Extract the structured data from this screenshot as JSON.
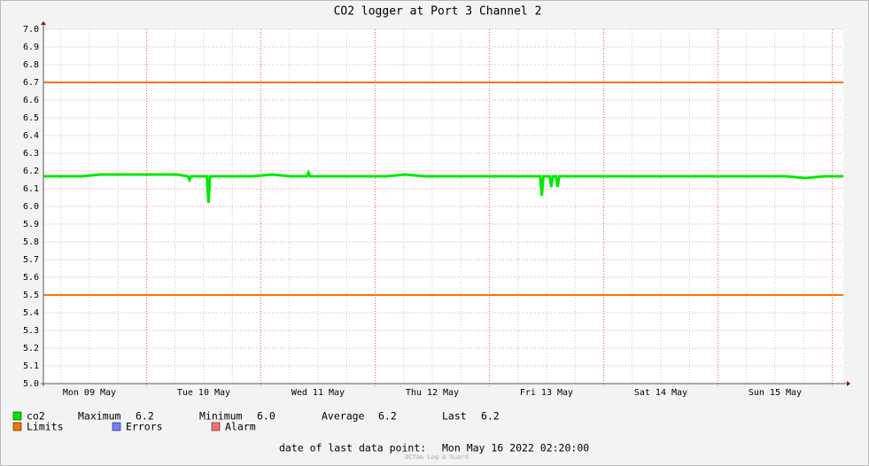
{
  "chart_data": {
    "type": "line",
    "title": "CO2 logger at Port 3 Channel 2",
    "x": [
      "2022-05-09 02:20",
      "2022-05-09 06:20",
      "2022-05-09 10:20",
      "2022-05-09 14:20",
      "2022-05-09 18:20",
      "2022-05-09 22:20",
      "2022-05-10 02:20",
      "2022-05-10 06:20",
      "2022-05-10 08:40",
      "2022-05-10 09:00",
      "2022-05-10 09:20",
      "2022-05-10 10:20",
      "2022-05-10 12:40",
      "2022-05-10 13:00",
      "2022-05-10 13:20",
      "2022-05-10 14:20",
      "2022-05-10 18:20",
      "2022-05-10 22:20",
      "2022-05-11 02:20",
      "2022-05-11 06:20",
      "2022-05-11 09:40",
      "2022-05-11 10:00",
      "2022-05-11 10:20",
      "2022-05-11 14:20",
      "2022-05-11 18:20",
      "2022-05-11 22:20",
      "2022-05-12 02:20",
      "2022-05-12 06:20",
      "2022-05-12 10:20",
      "2022-05-12 14:20",
      "2022-05-12 18:20",
      "2022-05-12 22:20",
      "2022-05-13 02:20",
      "2022-05-13 06:20",
      "2022-05-13 10:20",
      "2022-05-13 10:40",
      "2022-05-13 11:00",
      "2022-05-13 11:20",
      "2022-05-13 12:40",
      "2022-05-13 13:00",
      "2022-05-13 13:20",
      "2022-05-13 14:00",
      "2022-05-13 14:20",
      "2022-05-13 14:40",
      "2022-05-13 18:20",
      "2022-05-13 22:20",
      "2022-05-14 02:20",
      "2022-05-14 06:20",
      "2022-05-14 10:20",
      "2022-05-14 14:20",
      "2022-05-14 18:20",
      "2022-05-14 22:20",
      "2022-05-15 02:20",
      "2022-05-15 06:20",
      "2022-05-15 10:20",
      "2022-05-15 14:20",
      "2022-05-15 18:20",
      "2022-05-15 22:20",
      "2022-05-16 02:20"
    ],
    "series": [
      {
        "name": "co2",
        "color": "#00e800",
        "values": [
          6.17,
          6.17,
          6.17,
          6.18,
          6.18,
          6.18,
          6.18,
          6.18,
          6.17,
          6.15,
          6.17,
          6.17,
          6.17,
          6.02,
          6.17,
          6.17,
          6.17,
          6.17,
          6.18,
          6.17,
          6.17,
          6.19,
          6.17,
          6.17,
          6.17,
          6.17,
          6.17,
          6.18,
          6.17,
          6.17,
          6.17,
          6.17,
          6.17,
          6.17,
          6.17,
          6.17,
          6.06,
          6.17,
          6.17,
          6.11,
          6.17,
          6.17,
          6.11,
          6.17,
          6.17,
          6.17,
          6.17,
          6.17,
          6.17,
          6.17,
          6.17,
          6.17,
          6.17,
          6.17,
          6.17,
          6.17,
          6.16,
          6.17,
          6.17
        ]
      }
    ],
    "limits": {
      "name": "Limits",
      "color": "#ff7000",
      "values": [
        6.7,
        5.5
      ]
    },
    "legend_extra": [
      {
        "name": "Errors",
        "color": "#7080ff"
      },
      {
        "name": "Alarm",
        "color": "#ff7070"
      }
    ],
    "stats": [
      {
        "label": "Maximum",
        "value": 6.2
      },
      {
        "label": "Minimum",
        "value": 6.0,
        "value_label": "6.0"
      },
      {
        "label": "Average",
        "value": 6.2
      },
      {
        "label": "Last",
        "value": 6.2
      }
    ],
    "xlim": [
      "2022-05-09 02:20",
      "2022-05-16 02:20"
    ],
    "xticks": [
      {
        "value": "2022-05-09 12:00",
        "label": "Mon 09 May"
      },
      {
        "value": "2022-05-10 12:00",
        "label": "Tue 10 May"
      },
      {
        "value": "2022-05-11 12:00",
        "label": "Wed 11 May"
      },
      {
        "value": "2022-05-12 12:00",
        "label": "Thu 12 May"
      },
      {
        "value": "2022-05-13 12:00",
        "label": "Fri 13 May"
      },
      {
        "value": "2022-05-14 12:00",
        "label": "Sat 14 May"
      },
      {
        "value": "2022-05-15 12:00",
        "label": "Sun 15 May"
      }
    ],
    "xgrid": [
      "2022-05-10 00:00",
      "2022-05-11 00:00",
      "2022-05-12 00:00",
      "2022-05-13 00:00",
      "2022-05-14 00:00",
      "2022-05-15 00:00",
      "2022-05-16 00:00"
    ],
    "xminor": [
      "2022-05-09 06:00",
      "2022-05-09 12:00",
      "2022-05-09 18:00",
      "2022-05-10 06:00",
      "2022-05-10 12:00",
      "2022-05-10 18:00",
      "2022-05-11 06:00",
      "2022-05-11 12:00",
      "2022-05-11 18:00",
      "2022-05-12 06:00",
      "2022-05-12 12:00",
      "2022-05-12 18:00",
      "2022-05-13 06:00",
      "2022-05-13 12:00",
      "2022-05-13 18:00",
      "2022-05-14 06:00",
      "2022-05-14 12:00",
      "2022-05-14 18:00",
      "2022-05-15 06:00",
      "2022-05-15 12:00",
      "2022-05-15 18:00"
    ],
    "ylim": [
      5.0,
      7.0
    ],
    "yticks": [
      {
        "value": 5.0,
        "label": "5.0"
      },
      5.1,
      5.2,
      5.3,
      5.4,
      5.5,
      5.6,
      5.7,
      5.8,
      5.9,
      {
        "value": 6.0,
        "label": "6.0"
      },
      6.1,
      6.2,
      6.3,
      6.4,
      6.5,
      6.6,
      6.7,
      6.8,
      6.9,
      {
        "value": 7.0,
        "label": "7.0"
      }
    ],
    "grid": true,
    "footer": {
      "label": "date of last data point:",
      "value": "Mon May 16 2022 02:20:00"
    },
    "watermark": "OCTA& Log & Guard"
  }
}
